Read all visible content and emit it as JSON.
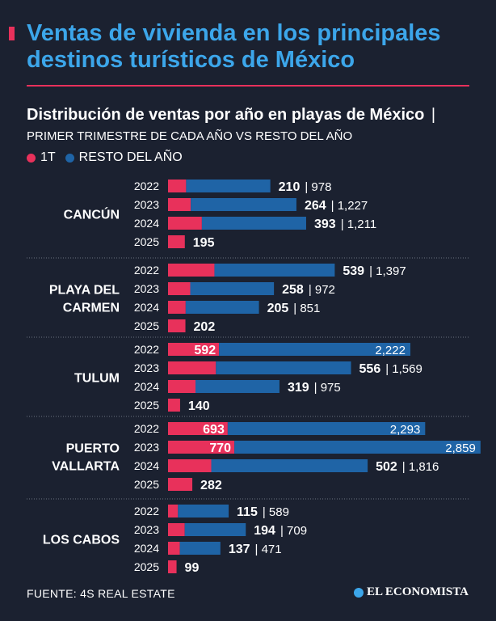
{
  "header": {
    "title": "Ventas de vivienda en los principales destinos turísticos de México",
    "subtitle_bold": "Distribución de ventas por año en playas de México",
    "subtitle_sep": "|",
    "subtitle_light": "PRIMER TRIMESTRE DE CADA AÑO VS RESTO DEL AÑO"
  },
  "legend": {
    "q1_label": "1T",
    "rest_label": "RESTO DEL AÑO"
  },
  "colors": {
    "q1": "#e8315b",
    "rest": "#1f64a6",
    "title": "#3ca6ea",
    "background": "#1b2130"
  },
  "footer": {
    "source": "FUENTE: 4S REAL ESTATE",
    "brand": "EL ECONOMISTA"
  },
  "chart_data": {
    "type": "bar",
    "orientation": "horizontal",
    "stacked": true,
    "series": [
      {
        "name": "1T"
      },
      {
        "name": "RESTO DEL AÑO"
      }
    ],
    "groups": [
      {
        "label": "CANCÚN",
        "rows": [
          {
            "year": "2022",
            "q1": 210,
            "rest": 978
          },
          {
            "year": "2023",
            "q1": 264,
            "rest": 1227
          },
          {
            "year": "2024",
            "q1": 393,
            "rest": 1211
          },
          {
            "year": "2025",
            "q1": 195,
            "rest": null
          }
        ]
      },
      {
        "label": "PLAYA DEL CARMEN",
        "rows": [
          {
            "year": "2022",
            "q1": 539,
            "rest": 1397
          },
          {
            "year": "2023",
            "q1": 258,
            "rest": 972
          },
          {
            "year": "2024",
            "q1": 205,
            "rest": 851
          },
          {
            "year": "2025",
            "q1": 202,
            "rest": null
          }
        ]
      },
      {
        "label": "TULUM",
        "rows": [
          {
            "year": "2022",
            "q1": 592,
            "rest": 2222
          },
          {
            "year": "2023",
            "q1": 556,
            "rest": 1569
          },
          {
            "year": "2024",
            "q1": 319,
            "rest": 975
          },
          {
            "year": "2025",
            "q1": 140,
            "rest": null
          }
        ]
      },
      {
        "label": "PUERTO VALLARTA",
        "rows": [
          {
            "year": "2022",
            "q1": 693,
            "rest": 2293
          },
          {
            "year": "2023",
            "q1": 770,
            "rest": 2859
          },
          {
            "year": "2024",
            "q1": 502,
            "rest": 1816
          },
          {
            "year": "2025",
            "q1": 282,
            "rest": null
          }
        ]
      },
      {
        "label": "LOS CABOS",
        "rows": [
          {
            "year": "2022",
            "q1": 115,
            "rest": 589
          },
          {
            "year": "2023",
            "q1": 194,
            "rest": 709
          },
          {
            "year": "2024",
            "q1": 137,
            "rest": 471
          },
          {
            "year": "2025",
            "q1": 99,
            "rest": null
          }
        ]
      }
    ]
  }
}
